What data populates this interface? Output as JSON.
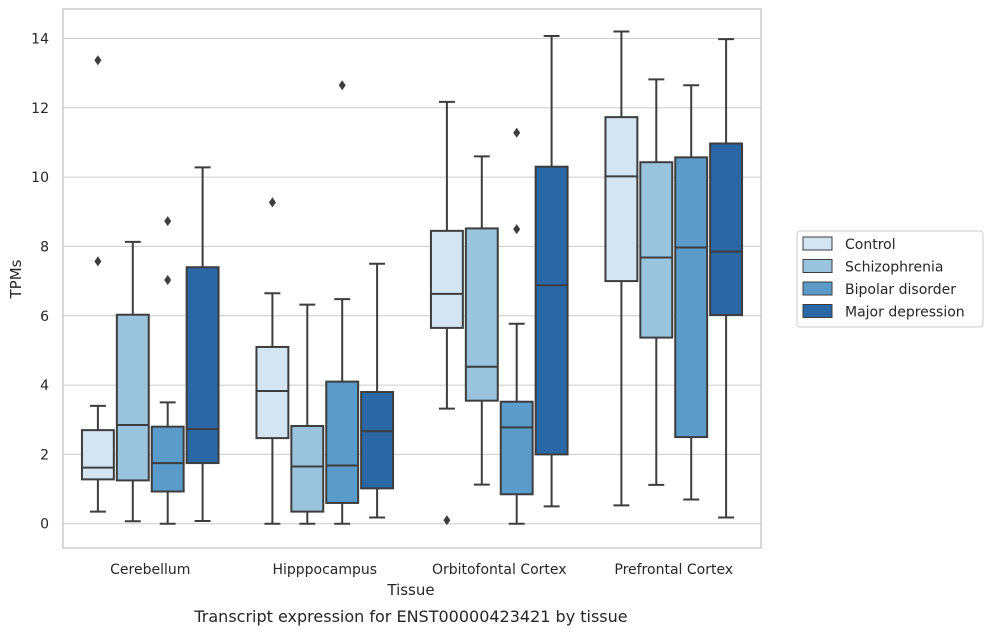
{
  "chart_data": {
    "type": "box",
    "caption": "Transcript expression for ENST00000423421 by tissue",
    "xlabel": "Tissue",
    "ylabel": "TPMs",
    "ylim": [
      -0.7,
      14.85
    ],
    "yticks": [
      0,
      2,
      4,
      6,
      8,
      10,
      12,
      14
    ],
    "grid": "horizontal",
    "legend_placement": "right",
    "categories": [
      "Cerebellum",
      "Hipppocampus",
      "Orbitofontal Cortex",
      "Prefrontal Cortex"
    ],
    "series": [
      {
        "name": "Control",
        "color": "#d3e4f3",
        "boxes": [
          {
            "whislo": 0.35,
            "q1": 1.28,
            "med": 1.62,
            "q3": 2.7,
            "whishi": 3.4,
            "fliers": [
              7.57,
              13.37
            ]
          },
          {
            "whislo": 0.0,
            "q1": 2.47,
            "med": 3.83,
            "q3": 5.1,
            "whishi": 6.65,
            "fliers": [
              9.27
            ]
          },
          {
            "whislo": 3.32,
            "q1": 5.65,
            "med": 6.63,
            "q3": 8.45,
            "whishi": 12.17,
            "fliers": [
              0.1
            ]
          },
          {
            "whislo": 0.53,
            "q1": 7.0,
            "med": 10.02,
            "q3": 11.73,
            "whishi": 14.2,
            "fliers": []
          }
        ]
      },
      {
        "name": "Schizophrenia",
        "color": "#9ac3de",
        "boxes": [
          {
            "whislo": 0.07,
            "q1": 1.25,
            "med": 2.85,
            "q3": 6.03,
            "whishi": 8.13,
            "fliers": []
          },
          {
            "whislo": 0.0,
            "q1": 0.35,
            "med": 1.65,
            "q3": 2.82,
            "whishi": 6.32,
            "fliers": []
          },
          {
            "whislo": 1.13,
            "q1": 3.55,
            "med": 4.53,
            "q3": 8.52,
            "whishi": 10.6,
            "fliers": []
          },
          {
            "whislo": 1.12,
            "q1": 5.37,
            "med": 7.68,
            "q3": 10.43,
            "whishi": 12.82,
            "fliers": []
          }
        ]
      },
      {
        "name": "Bipolar disorder",
        "color": "#5a9bc9",
        "boxes": [
          {
            "whislo": 0.0,
            "q1": 0.93,
            "med": 1.75,
            "q3": 2.8,
            "whishi": 3.5,
            "fliers": [
              7.03,
              8.73
            ]
          },
          {
            "whislo": 0.0,
            "q1": 0.6,
            "med": 1.68,
            "q3": 4.1,
            "whishi": 6.48,
            "fliers": [
              12.65
            ]
          },
          {
            "whislo": 0.0,
            "q1": 0.85,
            "med": 2.78,
            "q3": 3.52,
            "whishi": 5.77,
            "fliers": [
              8.5,
              11.28
            ]
          },
          {
            "whislo": 0.7,
            "q1": 2.5,
            "med": 7.97,
            "q3": 10.57,
            "whishi": 12.65,
            "fliers": []
          }
        ]
      },
      {
        "name": "Major depression",
        "color": "#2b67a5",
        "boxes": [
          {
            "whislo": 0.08,
            "q1": 1.75,
            "med": 2.73,
            "q3": 7.4,
            "whishi": 10.28,
            "fliers": []
          },
          {
            "whislo": 0.18,
            "q1": 1.02,
            "med": 2.67,
            "q3": 3.8,
            "whishi": 7.5,
            "fliers": []
          },
          {
            "whislo": 0.5,
            "q1": 2.0,
            "med": 6.88,
            "q3": 10.3,
            "whishi": 14.07,
            "fliers": []
          },
          {
            "whislo": 0.18,
            "q1": 6.02,
            "med": 7.85,
            "q3": 10.97,
            "whishi": 13.98,
            "fliers": []
          }
        ]
      }
    ]
  }
}
